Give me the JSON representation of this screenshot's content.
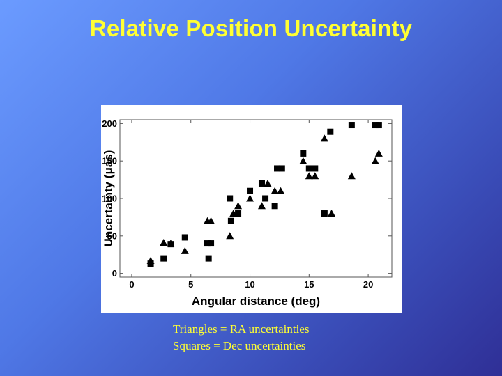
{
  "slide": {
    "title": "Relative Position Uncertainty",
    "caption_lines": [
      "Triangles = RA uncertainties",
      "Squares = Dec uncertainties"
    ]
  },
  "colors": {
    "title_text": "#ffff33",
    "caption_text": "#ffff33",
    "marker": "#000000",
    "plot_background": "#ffffff"
  },
  "chart_data": {
    "type": "scatter",
    "title": "",
    "xlabel": "Angular distance (deg)",
    "ylabel": "Uncertainty (μas)",
    "xlim": [
      -1,
      22
    ],
    "ylim": [
      -5,
      205
    ],
    "x_ticks": [
      0,
      5,
      10,
      15,
      20
    ],
    "x_tick_labels": [
      "0",
      "5",
      "10",
      "15",
      "20"
    ],
    "y_ticks": [
      0,
      50,
      100,
      150,
      200
    ],
    "y_tick_labels": [
      "0",
      "50",
      "100",
      "150",
      "200"
    ],
    "grid": false,
    "series": [
      {
        "marker": "triangle",
        "points": [
          [
            1.6,
            17
          ],
          [
            2.7,
            41
          ],
          [
            3.3,
            40
          ],
          [
            4.5,
            30
          ],
          [
            6.4,
            70
          ],
          [
            6.7,
            70
          ],
          [
            8.3,
            50
          ],
          [
            8.6,
            80
          ],
          [
            9.0,
            90
          ],
          [
            10.0,
            100
          ],
          [
            11.0,
            90
          ],
          [
            11.5,
            120
          ],
          [
            12.1,
            110
          ],
          [
            12.6,
            110
          ],
          [
            14.5,
            150
          ],
          [
            15.0,
            130
          ],
          [
            15.5,
            130
          ],
          [
            16.3,
            180
          ],
          [
            16.9,
            80
          ],
          [
            18.6,
            130
          ],
          [
            20.6,
            150
          ],
          [
            20.9,
            160
          ]
        ]
      },
      {
        "marker": "square",
        "points": [
          [
            1.6,
            13
          ],
          [
            2.7,
            20
          ],
          [
            3.3,
            39
          ],
          [
            4.5,
            48
          ],
          [
            6.4,
            40
          ],
          [
            6.5,
            20
          ],
          [
            6.7,
            40
          ],
          [
            8.3,
            100
          ],
          [
            8.4,
            70
          ],
          [
            9.0,
            80
          ],
          [
            10.0,
            110
          ],
          [
            11.0,
            120
          ],
          [
            11.3,
            100
          ],
          [
            12.1,
            90
          ],
          [
            12.3,
            140
          ],
          [
            12.7,
            140
          ],
          [
            14.5,
            160
          ],
          [
            15.0,
            140
          ],
          [
            15.5,
            140
          ],
          [
            16.3,
            80
          ],
          [
            16.8,
            189
          ],
          [
            18.6,
            198
          ],
          [
            20.6,
            198
          ],
          [
            20.9,
            198
          ]
        ]
      }
    ]
  }
}
